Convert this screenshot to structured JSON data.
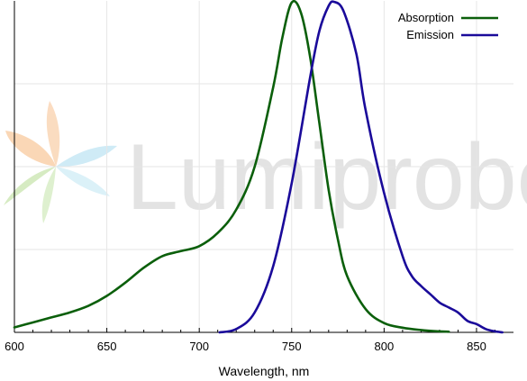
{
  "chart_data": {
    "type": "line",
    "title": "",
    "xlabel": "Wavelength, nm",
    "ylabel": "",
    "xlim": [
      600,
      870
    ],
    "ylim": [
      0,
      1
    ],
    "x_ticks": [
      600,
      650,
      700,
      750,
      800,
      850
    ],
    "grid": "vertical and horizontal, light gray",
    "legend_position": "top-right",
    "series": [
      {
        "name": "Absorption",
        "color": "#0b5f0b",
        "points": [
          [
            600,
            0.015
          ],
          [
            610,
            0.03
          ],
          [
            620,
            0.045
          ],
          [
            630,
            0.06
          ],
          [
            640,
            0.08
          ],
          [
            650,
            0.11
          ],
          [
            660,
            0.15
          ],
          [
            670,
            0.195
          ],
          [
            680,
            0.23
          ],
          [
            690,
            0.245
          ],
          [
            700,
            0.26
          ],
          [
            710,
            0.3
          ],
          [
            720,
            0.37
          ],
          [
            730,
            0.5
          ],
          [
            740,
            0.74
          ],
          [
            745,
            0.89
          ],
          [
            750,
            0.995
          ],
          [
            755,
            0.965
          ],
          [
            760,
            0.83
          ],
          [
            765,
            0.63
          ],
          [
            770,
            0.43
          ],
          [
            775,
            0.28
          ],
          [
            780,
            0.17
          ],
          [
            790,
            0.07
          ],
          [
            800,
            0.028
          ],
          [
            810,
            0.014
          ],
          [
            820,
            0.007
          ],
          [
            830,
            0.003
          ],
          [
            835,
            0.002
          ]
        ]
      },
      {
        "name": "Emission",
        "color": "#1a0a9a",
        "points": [
          [
            711,
            0.0
          ],
          [
            720,
            0.01
          ],
          [
            730,
            0.06
          ],
          [
            740,
            0.2
          ],
          [
            750,
            0.45
          ],
          [
            760,
            0.77
          ],
          [
            765,
            0.91
          ],
          [
            770,
            0.985
          ],
          [
            773,
            0.997
          ],
          [
            778,
            0.97
          ],
          [
            785,
            0.84
          ],
          [
            790,
            0.67
          ],
          [
            800,
            0.42
          ],
          [
            810,
            0.23
          ],
          [
            815,
            0.17
          ],
          [
            820,
            0.14
          ],
          [
            825,
            0.115
          ],
          [
            830,
            0.09
          ],
          [
            835,
            0.075
          ],
          [
            840,
            0.06
          ],
          [
            845,
            0.035
          ],
          [
            850,
            0.025
          ],
          [
            855,
            0.01
          ],
          [
            860,
            0.003
          ],
          [
            864,
            0.0
          ]
        ]
      }
    ]
  },
  "watermark": {
    "text": "Lumiprobe",
    "logo_colors": [
      "#f8c89a",
      "#bfe6f4",
      "#c4e4a8"
    ]
  }
}
